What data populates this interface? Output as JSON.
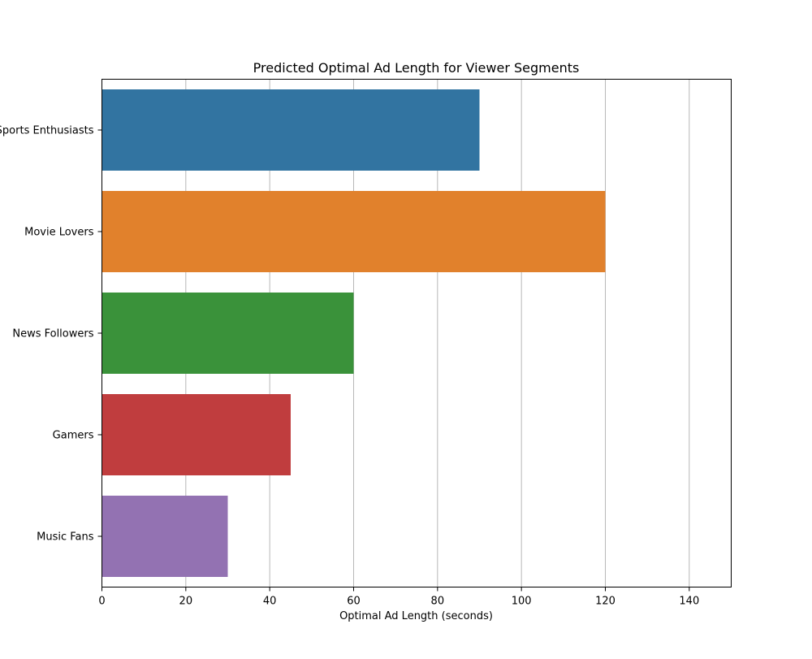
{
  "chart_data": {
    "type": "bar",
    "orientation": "horizontal",
    "title": "Predicted Optimal Ad Length for Viewer Segments",
    "xlabel": "Optimal Ad Length (seconds)",
    "ylabel": "",
    "xlim": [
      0,
      150
    ],
    "xticks": [
      0,
      20,
      40,
      60,
      80,
      100,
      120,
      140
    ],
    "grid": "x-only",
    "legend": "none",
    "categories": [
      "Sports Enthusiasts",
      "Movie Lovers",
      "News Followers",
      "Gamers",
      "Music Fans"
    ],
    "values": [
      90,
      120,
      60,
      45,
      30
    ],
    "colors": [
      "#3274a1",
      "#e1812c",
      "#3a923a",
      "#c03d3e",
      "#9372b2"
    ]
  }
}
